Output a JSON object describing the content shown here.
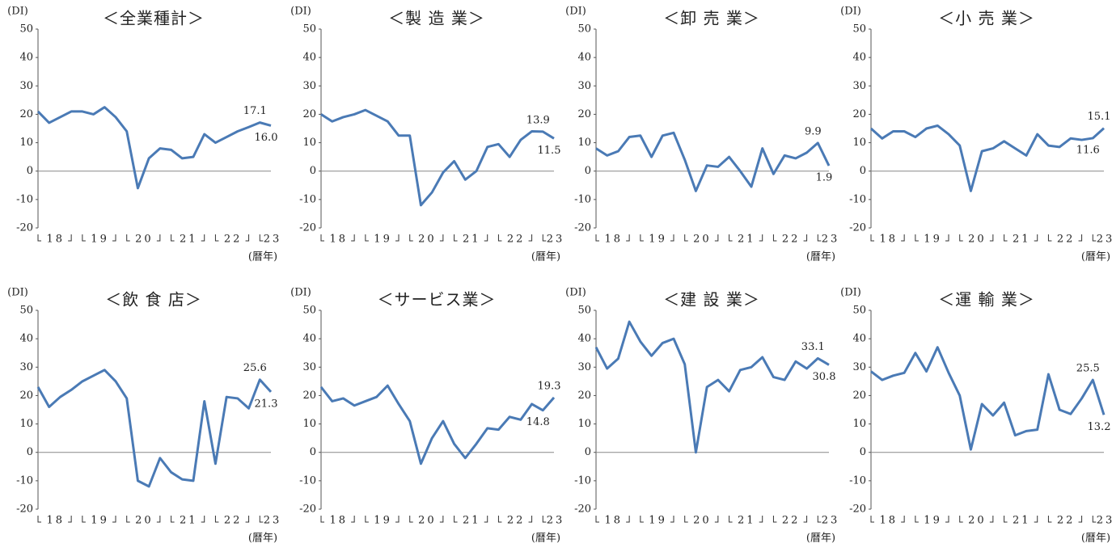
{
  "chart_data": [
    {
      "type": "line",
      "title": "＜全業種計＞",
      "y_label": "(DI)",
      "x_label": "(暦年)",
      "color": "#4a7ab5",
      "categories": [
        null,
        "18",
        null,
        null,
        null,
        "19",
        null,
        null,
        null,
        "20",
        null,
        null,
        null,
        "21",
        null,
        null,
        null,
        "22",
        null,
        null,
        null,
        "23"
      ],
      "values": [
        21,
        17,
        19,
        21,
        21,
        20,
        22.5,
        19,
        14,
        -6,
        4.5,
        8,
        7.5,
        4.5,
        5,
        13,
        10,
        12,
        14,
        15.5,
        17.1,
        16.0
      ],
      "value_labels": [
        null,
        null,
        null,
        null,
        null,
        null,
        null,
        null,
        null,
        null,
        null,
        null,
        null,
        null,
        null,
        null,
        null,
        null,
        null,
        null,
        "17.1",
        "16.0"
      ],
      "ylim": [
        -20,
        50
      ],
      "yticks": [
        -20,
        -10,
        0,
        10,
        20,
        30,
        40,
        50
      ]
    },
    {
      "type": "line",
      "title": "＜製 造 業＞",
      "y_label": "(DI)",
      "x_label": "(暦年)",
      "color": "#4a7ab5",
      "categories": [
        null,
        "18",
        null,
        null,
        null,
        "19",
        null,
        null,
        null,
        "20",
        null,
        null,
        null,
        "21",
        null,
        null,
        null,
        "22",
        null,
        null,
        null,
        "23"
      ],
      "values": [
        20,
        17.5,
        19,
        20,
        21.5,
        19.5,
        17.5,
        12.5,
        12.5,
        -12,
        -7.5,
        -0.5,
        3.5,
        -3,
        0,
        8.5,
        9.5,
        5,
        11,
        14,
        13.9,
        11.5
      ],
      "value_labels": [
        null,
        null,
        null,
        null,
        null,
        null,
        null,
        null,
        null,
        null,
        null,
        null,
        null,
        null,
        null,
        null,
        null,
        null,
        null,
        null,
        "13.9",
        "11.5"
      ],
      "ylim": [
        -20,
        50
      ],
      "yticks": [
        -20,
        -10,
        0,
        10,
        20,
        30,
        40,
        50
      ]
    },
    {
      "type": "line",
      "title": "＜卸 売 業＞",
      "y_label": "(DI)",
      "x_label": "(暦年)",
      "color": "#4a7ab5",
      "categories": [
        null,
        "18",
        null,
        null,
        null,
        "19",
        null,
        null,
        null,
        "20",
        null,
        null,
        null,
        "21",
        null,
        null,
        null,
        "22",
        null,
        null,
        null,
        "23"
      ],
      "values": [
        8,
        5.5,
        7,
        12,
        12.5,
        5,
        12.5,
        13.5,
        4,
        -7,
        2,
        1.5,
        5,
        0,
        -5.5,
        8,
        -1,
        5.5,
        4.5,
        6.5,
        9.9,
        1.9
      ],
      "value_labels": [
        null,
        null,
        null,
        null,
        null,
        null,
        null,
        null,
        null,
        null,
        null,
        null,
        null,
        null,
        null,
        null,
        null,
        null,
        null,
        null,
        "9.9",
        "1.9"
      ],
      "ylim": [
        -20,
        50
      ],
      "yticks": [
        -20,
        -10,
        0,
        10,
        20,
        30,
        40,
        50
      ]
    },
    {
      "type": "line",
      "title": "＜小 売 業＞",
      "y_label": "(DI)",
      "x_label": "(暦年)",
      "color": "#4a7ab5",
      "categories": [
        null,
        "18",
        null,
        null,
        null,
        "19",
        null,
        null,
        null,
        "20",
        null,
        null,
        null,
        "21",
        null,
        null,
        null,
        "22",
        null,
        null,
        null,
        "23"
      ],
      "values": [
        15,
        11.5,
        14,
        14,
        12,
        15,
        16,
        13,
        9,
        -7,
        7,
        8,
        10.5,
        8,
        5.5,
        13,
        9,
        8.5,
        11.5,
        11,
        11.6,
        15.1
      ],
      "value_labels": [
        null,
        null,
        null,
        null,
        null,
        null,
        null,
        null,
        null,
        null,
        null,
        null,
        null,
        null,
        null,
        null,
        null,
        null,
        null,
        null,
        "11.6",
        "15.1"
      ],
      "ylim": [
        -20,
        50
      ],
      "yticks": [
        -20,
        -10,
        0,
        10,
        20,
        30,
        40,
        50
      ]
    },
    {
      "type": "line",
      "title": "＜飲 食 店＞",
      "y_label": "(DI)",
      "x_label": "(暦年)",
      "color": "#4a7ab5",
      "categories": [
        null,
        "18",
        null,
        null,
        null,
        "19",
        null,
        null,
        null,
        "20",
        null,
        null,
        null,
        "21",
        null,
        null,
        null,
        "22",
        null,
        null,
        null,
        "23"
      ],
      "values": [
        23,
        16,
        19.5,
        22,
        25,
        27,
        29,
        25,
        19,
        -10,
        -12,
        -2,
        -7,
        -9.5,
        -10,
        18,
        -4,
        19.5,
        19,
        15.5,
        25.6,
        21.3
      ],
      "value_labels": [
        null,
        null,
        null,
        null,
        null,
        null,
        null,
        null,
        null,
        null,
        null,
        null,
        null,
        null,
        null,
        null,
        null,
        null,
        null,
        null,
        "25.6",
        "21.3"
      ],
      "ylim": [
        -20,
        50
      ],
      "yticks": [
        -20,
        -10,
        0,
        10,
        20,
        30,
        40,
        50
      ]
    },
    {
      "type": "line",
      "title": "＜サービス業＞",
      "y_label": "(DI)",
      "x_label": "(暦年)",
      "color": "#4a7ab5",
      "categories": [
        null,
        "18",
        null,
        null,
        null,
        "19",
        null,
        null,
        null,
        "20",
        null,
        null,
        null,
        "21",
        null,
        null,
        null,
        "22",
        null,
        null,
        null,
        "23"
      ],
      "values": [
        23,
        18,
        19,
        16.5,
        18,
        19.5,
        23.5,
        17,
        11,
        -4,
        5,
        11,
        3,
        -2,
        3,
        8.5,
        8,
        12.5,
        11.5,
        17,
        14.8,
        19.3
      ],
      "value_labels": [
        null,
        null,
        null,
        null,
        null,
        null,
        null,
        null,
        null,
        null,
        null,
        null,
        null,
        null,
        null,
        null,
        null,
        null,
        null,
        null,
        "14.8",
        "19.3"
      ],
      "ylim": [
        -20,
        50
      ],
      "yticks": [
        -20,
        -10,
        0,
        10,
        20,
        30,
        40,
        50
      ]
    },
    {
      "type": "line",
      "title": "＜建 設 業＞",
      "y_label": "(DI)",
      "x_label": "(暦年)",
      "color": "#4a7ab5",
      "categories": [
        null,
        "18",
        null,
        null,
        null,
        "19",
        null,
        null,
        null,
        "20",
        null,
        null,
        null,
        "21",
        null,
        null,
        null,
        "22",
        null,
        null,
        null,
        "23"
      ],
      "values": [
        37,
        29.5,
        33,
        46,
        39,
        34,
        38.5,
        40,
        31,
        0,
        23,
        25.5,
        21.5,
        29,
        30,
        33.5,
        26.5,
        25.5,
        32,
        29.5,
        33.1,
        30.8
      ],
      "value_labels": [
        null,
        null,
        null,
        null,
        null,
        null,
        null,
        null,
        null,
        null,
        null,
        null,
        null,
        null,
        null,
        null,
        null,
        null,
        null,
        null,
        "33.1",
        "30.8"
      ],
      "ylim": [
        -20,
        50
      ],
      "yticks": [
        -20,
        -10,
        0,
        10,
        20,
        30,
        40,
        50
      ]
    },
    {
      "type": "line",
      "title": "＜運 輸 業＞",
      "y_label": "(DI)",
      "x_label": "(暦年)",
      "color": "#4a7ab5",
      "categories": [
        null,
        "18",
        null,
        null,
        null,
        "19",
        null,
        null,
        null,
        "20",
        null,
        null,
        null,
        "21",
        null,
        null,
        null,
        "22",
        null,
        null,
        null,
        "23"
      ],
      "values": [
        28.5,
        25.5,
        27,
        28,
        35,
        28.5,
        37,
        28,
        20,
        1,
        17,
        13,
        17.5,
        6,
        7.5,
        8,
        27.5,
        15,
        13.5,
        19,
        25.5,
        13.2
      ],
      "value_labels": [
        null,
        null,
        null,
        null,
        null,
        null,
        null,
        null,
        null,
        null,
        null,
        null,
        null,
        null,
        null,
        null,
        null,
        null,
        null,
        null,
        "25.5",
        "13.2"
      ],
      "ylim": [
        -20,
        50
      ],
      "yticks": [
        -20,
        -10,
        0,
        10,
        20,
        30,
        40,
        50
      ]
    }
  ]
}
